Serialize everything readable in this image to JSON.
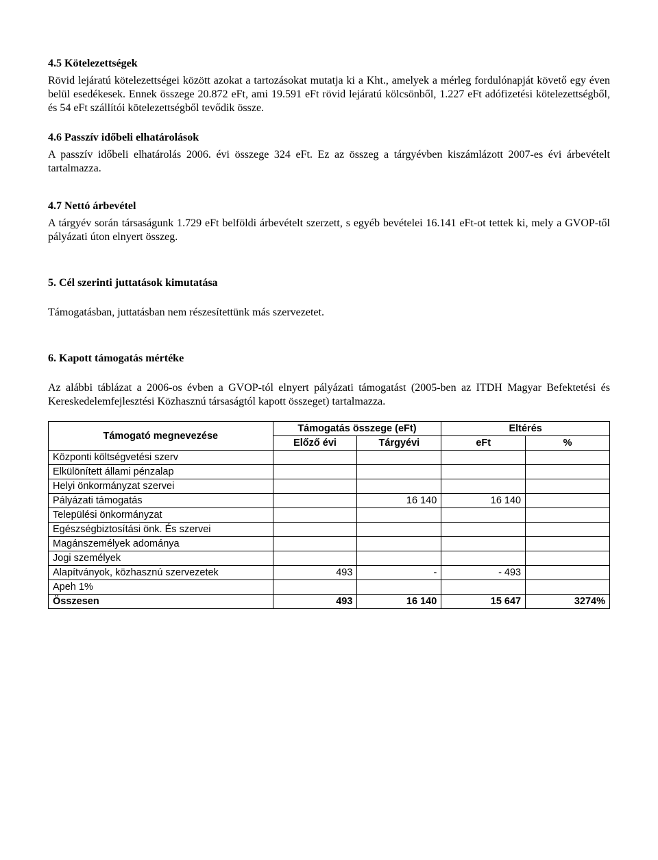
{
  "sections": {
    "s45": {
      "title": "4.5  Kötelezettségek",
      "p1": "Rövid lejáratú kötelezettségei között azokat a tartozásokat mutatja ki a Kht., amelyek a mérleg fordulónapját követő egy éven belül esedékesek. Ennek összege 20.872 eFt, ami 19.591 eFt rövid lejáratú kölcsönből, 1.227 eFt adófizetési kötelezettségből, és 54 eFt szállítói kötelezettségből tevődik össze."
    },
    "s46": {
      "title": "4.6  Passzív időbeli elhatárolások",
      "p1": "A passzív időbeli elhatárolás 2006. évi összege 324 eFt. Ez az összeg a tárgyévben kiszámlázott 2007-es évi árbevételt tartalmazza."
    },
    "s47": {
      "title": "4.7 Nettó árbevétel",
      "p1": "A tárgyév során társaságunk 1.729 eFt belföldi árbevételt szerzett, s egyéb bevételei 16.141 eFt-ot tettek ki, mely a GVOP-től pályázati úton elnyert összeg."
    },
    "s5": {
      "title": "5.   Cél szerinti juttatások kimutatása",
      "p1": "Támogatásban, juttatásban nem részesítettünk más szervezetet."
    },
    "s6": {
      "title": "6.   Kapott támogatás mértéke",
      "p1": "Az alábbi táblázat a 2006-os évben a GVOP-tól elnyert pályázati támogatást (2005-ben az ITDH Magyar Befektetési és Kereskedelemfejlesztési Közhasznú társaságtól kapott összeget) tartalmazza."
    }
  },
  "table": {
    "header": {
      "name": "Támogató megnevezése",
      "amount_group": "Támogatás összege (eFt)",
      "diff_group": "Eltérés",
      "prev": "Előző évi",
      "curr": "Tárgyévi",
      "eft": "eFt",
      "pct": "%"
    },
    "rows": [
      {
        "label": "Központi költségvetési szerv",
        "prev": "",
        "curr": "",
        "eft": "",
        "pct": ""
      },
      {
        "label": "Elkülönített állami pénzalap",
        "prev": "",
        "curr": "",
        "eft": "",
        "pct": ""
      },
      {
        "label": "Helyi önkormányzat szervei",
        "prev": "",
        "curr": "",
        "eft": "",
        "pct": ""
      },
      {
        "label": "Pályázati támogatás",
        "prev": "",
        "curr": "16 140",
        "eft": "16 140",
        "pct": ""
      },
      {
        "label": "Települési önkormányzat",
        "prev": "",
        "curr": "",
        "eft": "",
        "pct": ""
      },
      {
        "label": "Egészségbiztosítási önk. És szervei",
        "prev": "",
        "curr": "",
        "eft": "",
        "pct": ""
      },
      {
        "label": "Magánszemélyek adománya",
        "prev": "",
        "curr": "",
        "eft": "",
        "pct": ""
      },
      {
        "label": "Jogi személyek",
        "prev": "",
        "curr": "",
        "eft": "",
        "pct": ""
      },
      {
        "label": "Alapítványok, közhasznú szervezetek",
        "prev": "493",
        "curr": "-",
        "eft": "- 493",
        "pct": ""
      },
      {
        "label": "Apeh 1%",
        "prev": "",
        "curr": "",
        "eft": "",
        "pct": ""
      }
    ],
    "total": {
      "label": "Összesen",
      "prev": "493",
      "curr": "16 140",
      "eft": "15 647",
      "pct": "3274%"
    }
  }
}
